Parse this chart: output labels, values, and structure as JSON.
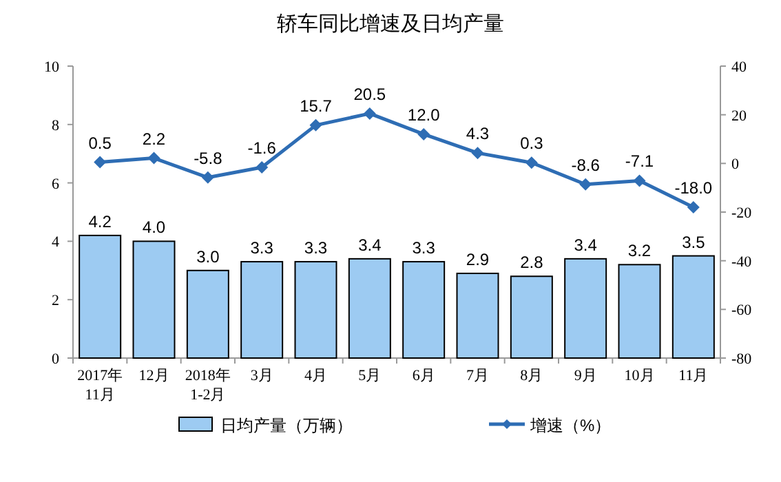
{
  "chart_data": {
    "type": "bar",
    "title": "轿车同比增速及日均产量",
    "categories": [
      "2017年\n11月",
      "12月",
      "2018年\n1-2月",
      "3月",
      "4月",
      "5月",
      "6月",
      "7月",
      "8月",
      "9月",
      "10月",
      "11月"
    ],
    "series": [
      {
        "name": "日均产量（万辆）",
        "color": "#9dcbf2",
        "values": [
          4.2,
          4.0,
          3.0,
          3.3,
          3.3,
          3.4,
          3.3,
          2.9,
          2.8,
          3.4,
          3.2,
          3.5
        ],
        "value_labels": [
          "4.2",
          "4.0",
          "3.0",
          "3.3",
          "3.3",
          "3.4",
          "3.3",
          "2.9",
          "2.8",
          "3.4",
          "3.2",
          "3.5"
        ]
      },
      {
        "name": "增速（%）",
        "type": "line",
        "axis": "y2",
        "color": "#2e6db4",
        "marker": "diamond",
        "values": [
          0.5,
          2.2,
          -5.8,
          -1.6,
          15.7,
          20.5,
          12.0,
          4.3,
          0.3,
          -8.6,
          -7.1,
          -18.0
        ],
        "value_labels": [
          "0.5",
          "2.2",
          "-5.8",
          "-1.6",
          "15.7",
          "20.5",
          "12.0",
          "4.3",
          "0.3",
          "-8.6",
          "-7.1",
          "-18.0"
        ]
      }
    ],
    "ylim": [
      0,
      10
    ],
    "yticks": [
      0,
      2,
      4,
      6,
      8,
      10
    ],
    "y2lim": [
      -80,
      40
    ],
    "y2ticks": [
      -80,
      -60,
      -40,
      -20,
      0,
      20,
      40
    ],
    "legend": "bottom"
  }
}
